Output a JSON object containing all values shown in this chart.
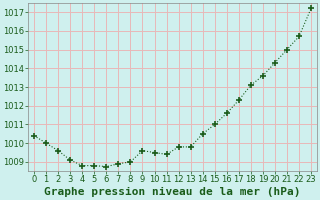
{
  "x": [
    0,
    1,
    2,
    3,
    4,
    5,
    6,
    7,
    8,
    9,
    10,
    11,
    12,
    13,
    14,
    15,
    16,
    17,
    18,
    19,
    20,
    21,
    22,
    23
  ],
  "y": [
    1010.4,
    1010.0,
    1009.6,
    1009.1,
    1008.8,
    1008.8,
    1008.75,
    1008.9,
    1009.0,
    1009.6,
    1009.5,
    1009.4,
    1009.8,
    1009.8,
    1010.5,
    1011.0,
    1011.6,
    1012.3,
    1013.1,
    1013.6,
    1014.3,
    1015.0,
    1015.7,
    1017.2
  ],
  "ylim": [
    1008.5,
    1017.5
  ],
  "xlim": [
    -0.5,
    23.5
  ],
  "yticks": [
    1009,
    1010,
    1011,
    1012,
    1013,
    1014,
    1015,
    1016,
    1017
  ],
  "xticks": [
    0,
    1,
    2,
    3,
    4,
    5,
    6,
    7,
    8,
    9,
    10,
    11,
    12,
    13,
    14,
    15,
    16,
    17,
    18,
    19,
    20,
    21,
    22,
    23
  ],
  "line_color": "#1a5c1a",
  "marker": "+",
  "marker_size": 5,
  "bg_color": "#cff0ee",
  "grid_color": "#e8b8b8",
  "xlabel": "Graphe pression niveau de la mer (hPa)",
  "xlabel_fontsize": 8,
  "tick_fontsize": 6,
  "ytick_fontsize": 6
}
